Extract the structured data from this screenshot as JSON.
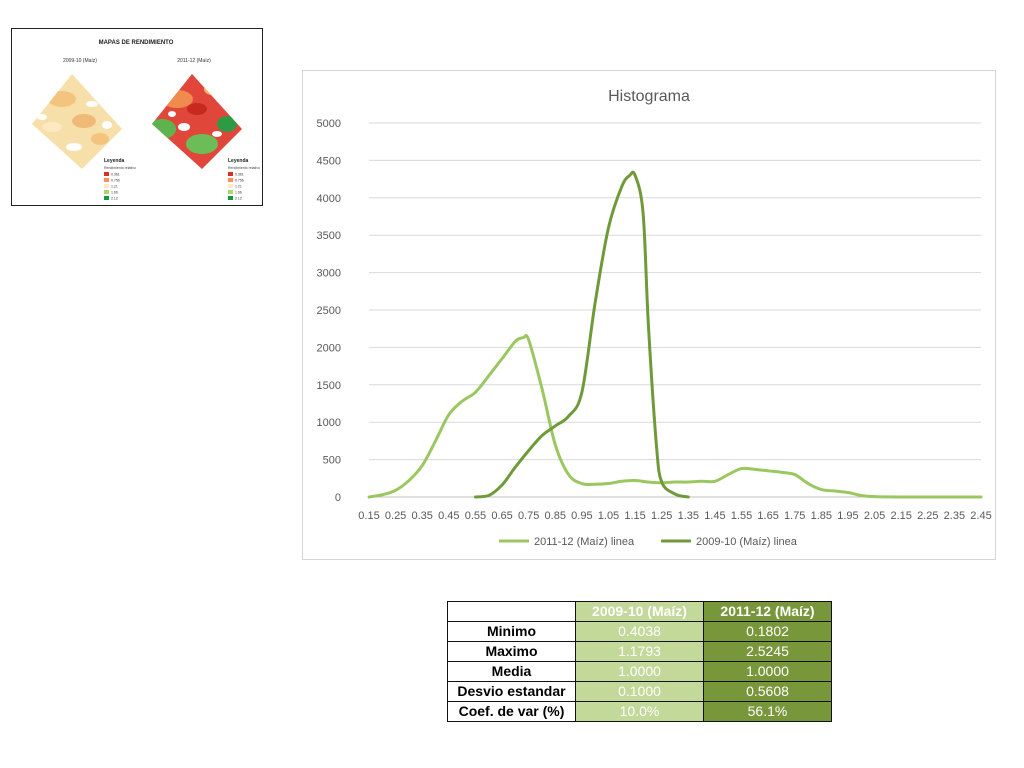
{
  "maps": {
    "title": "MAPAS DE RENDIMIENTO",
    "left_label": "2009-10 (Maíz)",
    "right_label": "2011-12 (Maíz)",
    "legend_title": "Leyenda",
    "legend_subtitle": "Rendimiento relativo",
    "legend_items": [
      "0.361",
      "0.756",
      "1.21",
      "1.66",
      "2.12"
    ],
    "legend_colors": [
      "#d7301f",
      "#fc8d59",
      "#fee8c8",
      "#a6d96a",
      "#1a9641"
    ]
  },
  "chart_data": {
    "type": "line",
    "title": "Histograma",
    "xlabel": "",
    "ylabel": "",
    "ylim": [
      0,
      5000
    ],
    "yticks": [
      "0",
      "500",
      "1000",
      "1500",
      "2000",
      "2500",
      "3000",
      "3500",
      "4000",
      "4500",
      "5000"
    ],
    "x_categories": [
      "0.15",
      "0.25",
      "0.35",
      "0.45",
      "0.55",
      "0.65",
      "0.75",
      "0.85",
      "0.95",
      "1.05",
      "1.15",
      "1.25",
      "1.35",
      "1.45",
      "1.55",
      "1.65",
      "1.75",
      "1.85",
      "1.95",
      "2.05",
      "2.15",
      "2.25",
      "2.35",
      "2.45"
    ],
    "legend_position": "bottom",
    "grid": true,
    "series": [
      {
        "name": "2011-12 (Maíz) linea",
        "color": "#9bc760",
        "x": [
          0.15,
          0.2,
          0.25,
          0.3,
          0.35,
          0.4,
          0.45,
          0.5,
          0.55,
          0.6,
          0.65,
          0.7,
          0.73,
          0.75,
          0.8,
          0.85,
          0.9,
          0.95,
          1.0,
          1.05,
          1.1,
          1.15,
          1.2,
          1.25,
          1.3,
          1.35,
          1.4,
          1.45,
          1.5,
          1.55,
          1.6,
          1.65,
          1.7,
          1.75,
          1.8,
          1.85,
          1.9,
          1.95,
          2.0,
          2.05,
          2.15,
          2.25,
          2.35,
          2.45
        ],
        "y": [
          0,
          30,
          90,
          220,
          420,
          750,
          1100,
          1280,
          1400,
          1620,
          1850,
          2080,
          2130,
          2100,
          1450,
          700,
          300,
          180,
          170,
          180,
          210,
          220,
          200,
          190,
          200,
          200,
          210,
          210,
          300,
          380,
          370,
          350,
          330,
          300,
          180,
          100,
          80,
          60,
          20,
          5,
          0,
          0,
          0,
          0
        ]
      },
      {
        "name": "2009-10 (Maíz) linea",
        "color": "#6f9a3a",
        "x": [
          0.55,
          0.6,
          0.65,
          0.7,
          0.75,
          0.8,
          0.85,
          0.9,
          0.95,
          1.0,
          1.05,
          1.1,
          1.13,
          1.15,
          1.18,
          1.2,
          1.23,
          1.25,
          1.3,
          1.35
        ],
        "y": [
          0,
          20,
          160,
          400,
          620,
          820,
          950,
          1080,
          1400,
          2600,
          3600,
          4150,
          4300,
          4300,
          3800,
          2300,
          700,
          200,
          40,
          0
        ]
      }
    ]
  },
  "table": {
    "col_headers": [
      "2009-10 (Maíz)",
      "2011-12 (Maíz)"
    ],
    "rows": [
      {
        "label": "Minimo",
        "v1": "0.4038",
        "v2": "0.1802"
      },
      {
        "label": "Maximo",
        "v1": "1.1793",
        "v2": "2.5245"
      },
      {
        "label": "Media",
        "v1": "1.0000",
        "v2": "1.0000"
      },
      {
        "label": "Desvio estandar",
        "v1": "0.1000",
        "v2": "0.5608"
      },
      {
        "label": "Coef. de var (%)",
        "v1": "10.0%",
        "v2": "56.1%"
      }
    ]
  }
}
